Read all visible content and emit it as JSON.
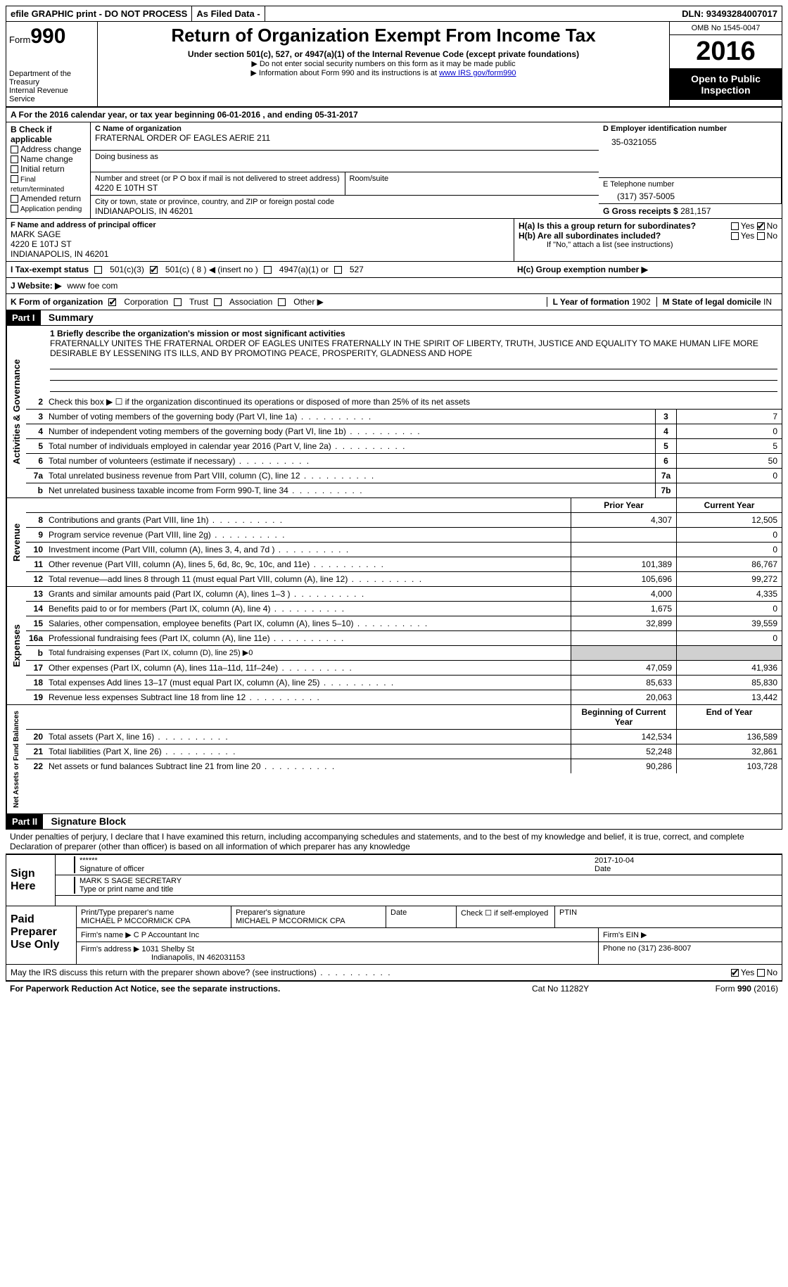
{
  "topbar": {
    "efile": "efile GRAPHIC print - DO NOT PROCESS",
    "asfiled": "As Filed Data -",
    "dln": "DLN: 93493284007017"
  },
  "header": {
    "form_prefix": "Form",
    "form_no": "990",
    "dept": "Department of the Treasury\nInternal Revenue Service",
    "title": "Return of Organization Exempt From Income Tax",
    "subtitle": "Under section 501(c), 527, or 4947(a)(1) of the Internal Revenue Code (except private foundations)",
    "note1": "▶ Do not enter social security numbers on this form as it may be made public",
    "note2_pre": "▶ Information about Form 990 and its instructions is at ",
    "note2_link": "www IRS gov/form990",
    "omb": "OMB No 1545-0047",
    "year": "2016",
    "open": "Open to Public Inspection"
  },
  "rowA": "A  For the 2016 calendar year, or tax year beginning 06-01-2016  , and ending 05-31-2017",
  "B": {
    "label": "B Check if applicable",
    "items": [
      "Address change",
      "Name change",
      "Initial return",
      "Final return/terminated",
      "Amended return",
      "Application pending"
    ]
  },
  "C": {
    "name_lbl": "C Name of organization",
    "name": "FRATERNAL ORDER OF EAGLES AERIE 211",
    "dba_lbl": "Doing business as",
    "addr_lbl": "Number and street (or P O  box if mail is not delivered to street address)",
    "room_lbl": "Room/suite",
    "addr": "4220 E 10TH ST",
    "city_lbl": "City or town, state or province, country, and ZIP or foreign postal code",
    "city": "INDIANAPOLIS, IN  46201"
  },
  "D": {
    "lbl": "D Employer identification number",
    "val": "35-0321055"
  },
  "E": {
    "lbl": "E Telephone number",
    "val": "(317) 357-5005"
  },
  "G": {
    "lbl": "G Gross receipts $",
    "val": "281,157"
  },
  "F": {
    "lbl": "F  Name and address of principal officer",
    "name": "MARK SAGE",
    "addr1": "4220 E 10TJ ST",
    "addr2": "INDIANAPOLIS, IN  46201"
  },
  "H": {
    "a": "H(a)  Is this a group return for subordinates?",
    "b": "H(b)  Are all subordinates included?",
    "ifno": "If \"No,\" attach a list  (see instructions)",
    "c": "H(c)  Group exemption number ▶"
  },
  "I": {
    "lbl": "I  Tax-exempt status",
    "opts": [
      "501(c)(3)",
      "501(c) ( 8 ) ◀ (insert no )",
      "4947(a)(1) or",
      "527"
    ]
  },
  "J": {
    "lbl": "J  Website: ▶",
    "val": "www foe com"
  },
  "K": {
    "lbl": "K Form of organization",
    "opts": [
      "Corporation",
      "Trust",
      "Association",
      "Other ▶"
    ]
  },
  "L": {
    "lbl": "L Year of formation",
    "val": "1902"
  },
  "M": {
    "lbl": "M State of legal domicile",
    "val": "IN"
  },
  "part1": {
    "hdr": "Part I",
    "title": "Summary",
    "line1_lbl": "1 Briefly describe the organization's mission or most significant activities",
    "mission": "FRATERNALLY UNITES THE FRATERNAL ORDER OF EAGLES UNITES FRATERNALLY IN THE SPIRIT OF LIBERTY, TRUTH, JUSTICE AND EQUALITY TO MAKE HUMAN LIFE MORE DESIRABLE BY LESSENING ITS ILLS, AND BY PROMOTING PEACE, PROSPERITY, GLADNESS AND HOPE",
    "line2": "Check this box ▶ ☐ if the organization discontinued its operations or disposed of more than 25% of its net assets",
    "gov_lines": [
      {
        "n": "3",
        "d": "Number of voting members of the governing body (Part VI, line 1a)",
        "b": "3",
        "v": "7"
      },
      {
        "n": "4",
        "d": "Number of independent voting members of the governing body (Part VI, line 1b)",
        "b": "4",
        "v": "0"
      },
      {
        "n": "5",
        "d": "Total number of individuals employed in calendar year 2016 (Part V, line 2a)",
        "b": "5",
        "v": "5"
      },
      {
        "n": "6",
        "d": "Total number of volunteers (estimate if necessary)",
        "b": "6",
        "v": "50"
      },
      {
        "n": "7a",
        "d": "Total unrelated business revenue from Part VIII, column (C), line 12",
        "b": "7a",
        "v": "0"
      },
      {
        "n": "b",
        "d": "Net unrelated business taxable income from Form 990-T, line 34",
        "b": "7b",
        "v": ""
      }
    ],
    "col_prior": "Prior Year",
    "col_current": "Current Year",
    "rev_lines": [
      {
        "n": "8",
        "d": "Contributions and grants (Part VIII, line 1h)",
        "p": "4,307",
        "c": "12,505"
      },
      {
        "n": "9",
        "d": "Program service revenue (Part VIII, line 2g)",
        "p": "",
        "c": "0"
      },
      {
        "n": "10",
        "d": "Investment income (Part VIII, column (A), lines 3, 4, and 7d )",
        "p": "",
        "c": "0"
      },
      {
        "n": "11",
        "d": "Other revenue (Part VIII, column (A), lines 5, 6d, 8c, 9c, 10c, and 11e)",
        "p": "101,389",
        "c": "86,767"
      },
      {
        "n": "12",
        "d": "Total revenue—add lines 8 through 11 (must equal Part VIII, column (A), line 12)",
        "p": "105,696",
        "c": "99,272"
      }
    ],
    "exp_lines": [
      {
        "n": "13",
        "d": "Grants and similar amounts paid (Part IX, column (A), lines 1–3 )",
        "p": "4,000",
        "c": "4,335"
      },
      {
        "n": "14",
        "d": "Benefits paid to or for members (Part IX, column (A), line 4)",
        "p": "1,675",
        "c": "0"
      },
      {
        "n": "15",
        "d": "Salaries, other compensation, employee benefits (Part IX, column (A), lines 5–10)",
        "p": "32,899",
        "c": "39,559"
      },
      {
        "n": "16a",
        "d": "Professional fundraising fees (Part IX, column (A), line 11e)",
        "p": "",
        "c": "0"
      },
      {
        "n": "b",
        "d": "Total fundraising expenses (Part IX, column (D), line 25) ▶0",
        "p": "",
        "c": "",
        "grey": true
      },
      {
        "n": "17",
        "d": "Other expenses (Part IX, column (A), lines 11a–11d, 11f–24e)",
        "p": "47,059",
        "c": "41,936"
      },
      {
        "n": "18",
        "d": "Total expenses  Add lines 13–17 (must equal Part IX, column (A), line 25)",
        "p": "85,633",
        "c": "85,830"
      },
      {
        "n": "19",
        "d": "Revenue less expenses  Subtract line 18 from line 12",
        "p": "20,063",
        "c": "13,442"
      }
    ],
    "col_begin": "Beginning of Current Year",
    "col_end": "End of Year",
    "net_lines": [
      {
        "n": "20",
        "d": "Total assets (Part X, line 16)",
        "p": "142,534",
        "c": "136,589"
      },
      {
        "n": "21",
        "d": "Total liabilities (Part X, line 26)",
        "p": "52,248",
        "c": "32,861"
      },
      {
        "n": "22",
        "d": "Net assets or fund balances  Subtract line 21 from line 20",
        "p": "90,286",
        "c": "103,728"
      }
    ],
    "vlabels": {
      "gov": "Activities & Governance",
      "rev": "Revenue",
      "exp": "Expenses",
      "net": "Net Assets or Fund Balances"
    }
  },
  "part2": {
    "hdr": "Part II",
    "title": "Signature Block",
    "penalty": "Under penalties of perjury, I declare that I have examined this return, including accompanying schedules and statements, and to the best of my knowledge and belief, it is true, correct, and complete  Declaration of preparer (other than officer) is based on all information of which preparer has any knowledge",
    "sign_here": "Sign Here",
    "sig_stars": "******",
    "sig_officer_lbl": "Signature of officer",
    "sig_date": "2017-10-04",
    "date_lbl": "Date",
    "officer_name": "MARK S SAGE SECRETARY",
    "name_title_lbl": "Type or print name and title",
    "paid": "Paid Preparer Use Only",
    "prep_name_lbl": "Print/Type preparer's name",
    "prep_name": "MICHAEL P MCCORMICK CPA",
    "prep_sig_lbl": "Preparer's signature",
    "prep_sig": "MICHAEL P MCCORMICK CPA",
    "prep_date_lbl": "Date",
    "check_self": "Check ☐ if self-employed",
    "ptin_lbl": "PTIN",
    "firm_name_lbl": "Firm's name    ▶",
    "firm_name": "C P Accountant Inc",
    "firm_ein_lbl": "Firm's EIN ▶",
    "firm_addr_lbl": "Firm's address ▶",
    "firm_addr": "1031 Shelby St",
    "firm_addr2": "Indianapolis, IN  462031153",
    "phone_lbl": "Phone no",
    "phone": "(317) 236-8007",
    "discuss": "May the IRS discuss this return with the preparer shown above? (see instructions)",
    "yes": "Yes",
    "no": "No"
  },
  "footer": {
    "left": "For Paperwork Reduction Act Notice, see the separate instructions.",
    "mid": "Cat No 11282Y",
    "right": "Form 990 (2016)"
  }
}
